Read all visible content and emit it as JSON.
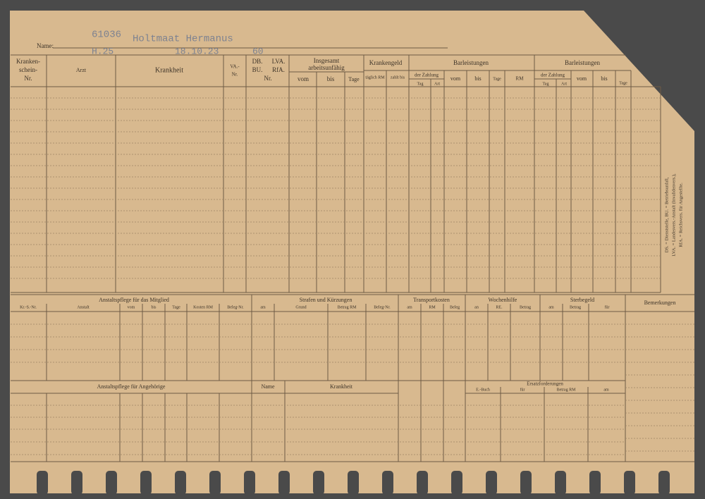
{
  "form": {
    "header": {
      "name_label": "Name:",
      "stamp": "61036",
      "name": "Holtmaat Hermanus",
      "code": "H.25",
      "date": "18.10.23",
      "age": "60"
    },
    "top": {
      "k1": "Kranken-",
      "k2": "schein-",
      "k3": "Nr.",
      "arzt": "Arzt",
      "krankheit": "Krankheit",
      "va1": "VA.-",
      "va2": "Nr.",
      "db": "DB.",
      "lva": "LVA.",
      "bu": "BU.",
      "rfa": "RfA.",
      "dbnr": "Nr.",
      "ins1": "Insgesamt",
      "ins2": "arbeitsunfähig",
      "vom1": "vom",
      "bis1": "bis",
      "tage1": "Tage",
      "kg": "Krankengeld",
      "taeglich": "täglich RM",
      "zahlbis": "zahlt bis",
      "bar1": "Barleistungen",
      "dz1": "der Zahlung",
      "tag1": "Tag",
      "art1": "Art",
      "vom2": "vom",
      "bis2": "bis",
      "tage2": "Tage",
      "rm": "RM",
      "bar2": "Barleistungen",
      "dz2": "der Zahlung",
      "tag2": "Tag",
      "art2": "Art",
      "vom3": "vom",
      "bis3": "bis",
      "tage3": "Tage"
    },
    "note": [
      "DS. = Dienststelle, BU. = Betriebsunfall,",
      "LVA. = Landesvers.-Anstalt (Invalidenvers.),",
      "RfA. = Reichsvers. für Angestellte."
    ],
    "bottom": {
      "anst": "Anstaltspflege für das Mitglied",
      "krsnr": "Kr.-S.-Nr.",
      "anstalt": "Anstalt",
      "vom": "vom",
      "bis": "bis",
      "tage": "Tage",
      "kosten": "Kosten RM",
      "belegnr": "Beleg-Nr.",
      "strafen": "Strafen und Kürzungen",
      "am": "am",
      "grund": "Grund",
      "betrag": "Betrag RM",
      "belegnr2": "Beleg-Nr.",
      "transport": "Transportkosten",
      "am2": "am",
      "rm": "RM",
      "beleg": "Beleg",
      "wochen": "Wochenhilfe",
      "an": "an",
      "re": "RE.",
      "betrag2": "Betrag",
      "sterbe": "Sterbegeld",
      "am3": "am",
      "betrag3": "Betrag",
      "fuer": "für",
      "bem": "Bemerkungen",
      "angeh": "Anstaltspflege für Angehörige",
      "name": "Name",
      "krank": "Krankheit",
      "ersatz": "Ersatzforderungen",
      "ebuch": "E.-Buch",
      "fuer2": "für",
      "betrag4": "Betrag RM",
      "am4": "am"
    }
  }
}
